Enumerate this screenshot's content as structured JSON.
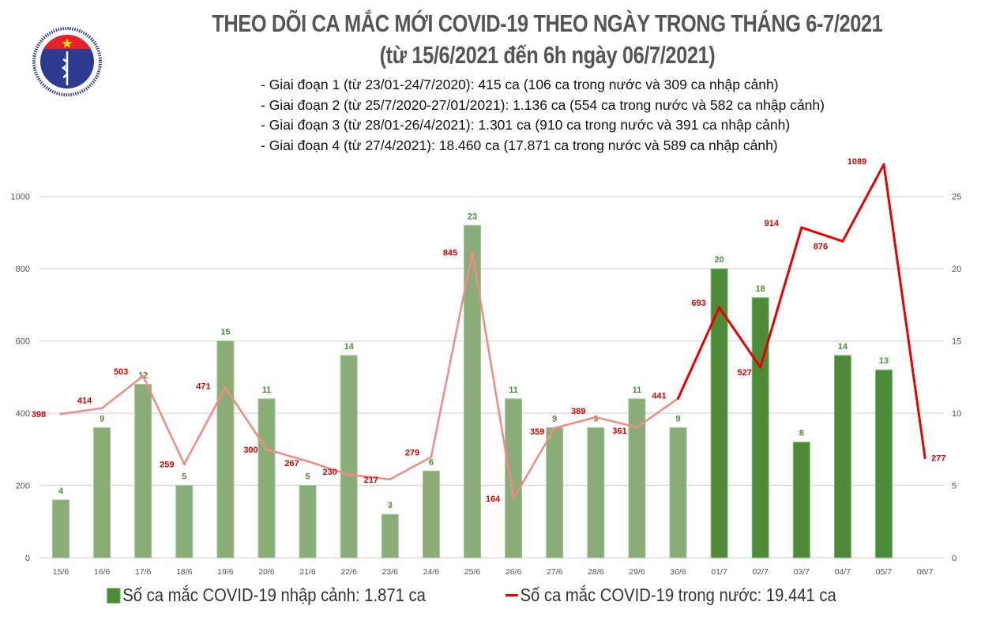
{
  "logo": {
    "top_text": "BỘ Y TẾ",
    "bottom_text": "MINISTRY OF HEALTH"
  },
  "title": {
    "line1": "THEO DÕI CA MẮC MỚI COVID-19 THEO NGÀY TRONG THÁNG 6-7/2021",
    "line2": "(từ 15/6/2021 đến 6h ngày 06/7/2021)"
  },
  "notes": [
    "- Giai đoạn 1 (từ 23/01-24/7/2020): 415 ca (106 ca trong nước và 309 ca nhập cảnh)",
    "- Giai đoạn 2 (từ 25/7/2020-27/01/2021): 1.136 ca (554 ca trong nước và 582 ca nhập cảnh)",
    "- Giai đoạn 3 (từ 28/01-26/4/2021): 1.301 ca (910 ca trong nước và 391 ca nhập cảnh)",
    "- Giai đoạn 4 (từ 27/4/2021): 18.460 ca (17.871 ca trong nước và 589 ca nhập cảnh)"
  ],
  "chart_data": {
    "type": "bar+line",
    "categories": [
      "15/6",
      "16/6",
      "17/6",
      "18/6",
      "19/6",
      "20/6",
      "21/6",
      "22/6",
      "23/6",
      "24/6",
      "25/6",
      "26/6",
      "27/6",
      "28/6",
      "29/6",
      "30/6",
      "01/7",
      "02/7",
      "03/7",
      "04/7",
      "05/7",
      "06/7"
    ],
    "series": [
      {
        "name": "Số ca mắc COVID-19 nhập cảnh: 1.871 ca",
        "type": "bar",
        "axis": "right",
        "values": [
          4,
          9,
          12,
          5,
          15,
          11,
          5,
          14,
          3,
          6,
          23,
          11,
          9,
          9,
          11,
          9,
          20,
          18,
          8,
          14,
          13,
          null
        ]
      },
      {
        "name": "Số ca mắc COVID-19 trong nước: 19.441 ca",
        "type": "line",
        "axis": "left",
        "values": [
          398,
          414,
          503,
          259,
          471,
          300,
          267,
          230,
          217,
          279,
          845,
          164,
          359,
          389,
          361,
          441,
          693,
          527,
          914,
          876,
          1089,
          277
        ]
      }
    ],
    "left_axis": {
      "ticks": [
        0,
        200,
        400,
        600,
        800,
        1000
      ],
      "ylim": [
        0,
        1100
      ]
    },
    "right_axis": {
      "ticks": [
        0,
        5,
        10,
        15,
        20,
        25
      ],
      "ylim": [
        0,
        27.5
      ]
    },
    "grid": true,
    "legend": "bottom",
    "colors": {
      "bar": "#8aad78",
      "bar_highlight": "#4e8a37",
      "line": "#f28a84",
      "line_highlight": "#e60000",
      "bar_label": "#4e8a37",
      "line_label": "#e00000"
    }
  }
}
